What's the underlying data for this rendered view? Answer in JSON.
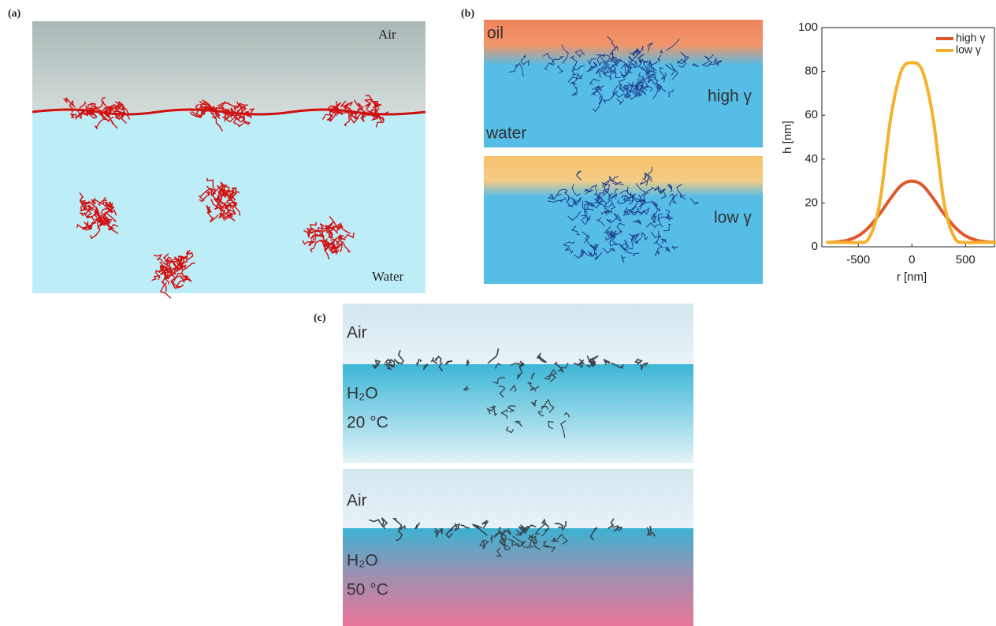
{
  "panel_a": {
    "label": "(a)",
    "air": "Air",
    "water": "Water"
  },
  "panel_b": {
    "label": "(b)",
    "top": {
      "oil": "oil",
      "gamma": "high γ",
      "water": "water"
    },
    "bottom": {
      "gamma": "low γ"
    }
  },
  "panel_c": {
    "label": "(c)",
    "top": {
      "air": "Air",
      "water": "H₂O",
      "temperature": "20 °C"
    },
    "bottom": {
      "air": "Air",
      "water": "H₂O",
      "temperature": "50 °C"
    }
  },
  "chart_data": {
    "type": "line",
    "xlabel": "r [nm]",
    "ylabel": "h [nm]",
    "x": [
      -800,
      -700,
      -600,
      -500,
      -400,
      -300,
      -200,
      -100,
      0,
      100,
      200,
      300,
      400,
      500,
      600,
      700,
      800
    ],
    "series": [
      {
        "name": "high γ",
        "color": "#e2572a",
        "values": [
          2,
          2.2,
          3,
          5,
          9,
          15,
          22,
          28,
          30,
          28,
          22,
          15,
          9,
          5,
          3,
          2.2,
          2
        ]
      },
      {
        "name": "low γ",
        "color": "#f4b12c",
        "values": [
          2,
          2,
          2,
          2,
          4,
          20,
          58,
          80,
          84,
          80,
          58,
          20,
          4,
          2,
          2,
          2,
          2
        ]
      }
    ],
    "xlim": [
      -840,
      770
    ],
    "ylim": [
      0,
      100
    ],
    "xticks": [
      -500,
      0,
      500
    ],
    "yticks": [
      0,
      20,
      40,
      60,
      80,
      100
    ],
    "legend": "upper right"
  }
}
